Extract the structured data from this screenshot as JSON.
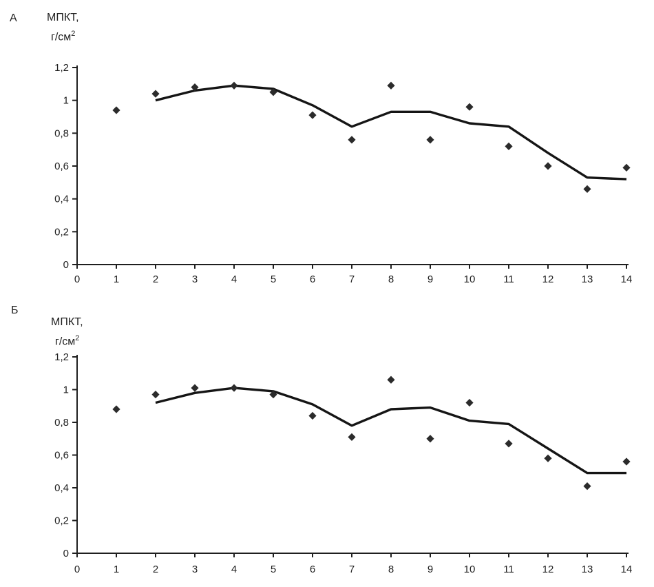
{
  "figure": {
    "background": "#ffffff",
    "axis_color": "#1f1f1f",
    "marker_color": "#2b2b2b",
    "trend_color": "#151515"
  },
  "chart_data": [
    {
      "type": "scatter",
      "panel_label": "А",
      "ylabel_line1": "МПКТ,",
      "ylabel_line2": "г/см",
      "ylabel_sup": "2",
      "xlabel": "",
      "xlim": [
        0,
        14
      ],
      "ylim": [
        0,
        1.2
      ],
      "grid": false,
      "legend": "none",
      "x_tick_values": [
        0,
        1,
        2,
        3,
        4,
        5,
        6,
        7,
        8,
        9,
        10,
        11,
        12,
        13,
        14
      ],
      "x_tick_labels": [
        "0",
        "1",
        "2",
        "3",
        "4",
        "5",
        "6",
        "7",
        "8",
        "9",
        "10",
        "11",
        "12",
        "13",
        "14"
      ],
      "y_tick_values": [
        0,
        0.2,
        0.4,
        0.6,
        0.8,
        1.0,
        1.2
      ],
      "y_tick_labels": [
        "0",
        "0,2",
        "0,4",
        "0,6",
        "0,8",
        "1",
        "1,2"
      ],
      "series": [
        {
          "name": "points",
          "kind": "scatter",
          "marker": "diamond",
          "x": [
            1,
            2,
            3,
            4,
            5,
            6,
            7,
            8,
            9,
            10,
            11,
            12,
            13,
            14
          ],
          "y": [
            0.94,
            1.04,
            1.08,
            1.09,
            1.05,
            0.91,
            0.76,
            1.09,
            0.76,
            0.96,
            0.72,
            0.6,
            0.46,
            0.59
          ]
        },
        {
          "name": "trend",
          "kind": "line",
          "x": [
            2,
            3,
            4,
            5,
            6,
            7,
            8,
            9,
            10,
            11,
            12,
            13,
            14
          ],
          "y": [
            1.0,
            1.06,
            1.09,
            1.07,
            0.97,
            0.84,
            0.93,
            0.93,
            0.86,
            0.84,
            0.68,
            0.53,
            0.52
          ]
        }
      ]
    },
    {
      "type": "scatter",
      "panel_label": "Б",
      "ylabel_line1": "МПКТ,",
      "ylabel_line2": "г/см",
      "ylabel_sup": "2",
      "xlabel": "",
      "xlim": [
        0,
        14
      ],
      "ylim": [
        0,
        1.2
      ],
      "grid": false,
      "legend": "none",
      "x_tick_values": [
        0,
        1,
        2,
        3,
        4,
        5,
        6,
        7,
        8,
        9,
        10,
        11,
        12,
        13,
        14
      ],
      "x_tick_labels": [
        "0",
        "1",
        "2",
        "3",
        "4",
        "5",
        "6",
        "7",
        "8",
        "9",
        "10",
        "11",
        "12",
        "13",
        "14"
      ],
      "y_tick_values": [
        0,
        0.2,
        0.4,
        0.6,
        0.8,
        1.0,
        1.2
      ],
      "y_tick_labels": [
        "0",
        "0,2",
        "0,4",
        "0,6",
        "0,8",
        "1",
        "1,2"
      ],
      "series": [
        {
          "name": "points",
          "kind": "scatter",
          "marker": "diamond",
          "x": [
            1,
            2,
            3,
            4,
            5,
            6,
            7,
            8,
            9,
            10,
            11,
            12,
            13,
            14
          ],
          "y": [
            0.88,
            0.97,
            1.01,
            1.01,
            0.97,
            0.84,
            0.71,
            1.06,
            0.7,
            0.92,
            0.67,
            0.58,
            0.41,
            0.56
          ]
        },
        {
          "name": "trend",
          "kind": "line",
          "x": [
            2,
            3,
            4,
            5,
            6,
            7,
            8,
            9,
            10,
            11,
            12,
            13,
            14
          ],
          "y": [
            0.92,
            0.98,
            1.01,
            0.99,
            0.91,
            0.78,
            0.88,
            0.89,
            0.81,
            0.79,
            0.64,
            0.49,
            0.49
          ]
        }
      ]
    }
  ]
}
